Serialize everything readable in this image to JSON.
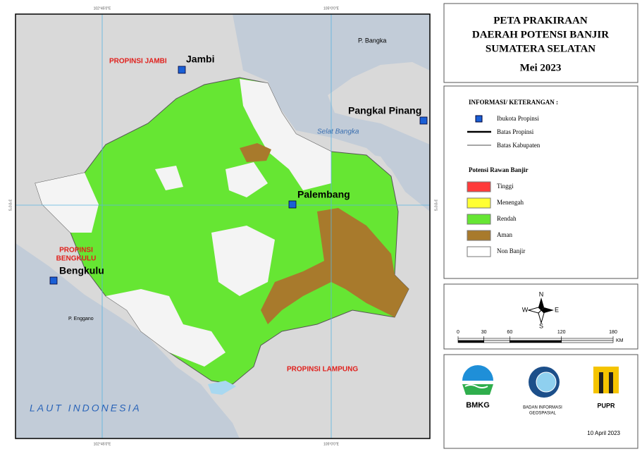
{
  "title": {
    "lines": [
      "PETA PRAKIRAAN",
      "DAERAH POTENSI BANJIR",
      "SUMATERA SELATAN"
    ],
    "period": "Mei 2023"
  },
  "map": {
    "labels": [
      "PROPINSI JAMBI",
      "Jambi",
      "P. Bangka",
      "Pangkal Pinang",
      "Selat Bangka",
      "Palembang",
      "PROPINSI",
      "BENGKULU",
      "Bengkulu",
      "P. Enggano",
      "PROPINSI LAMPUNG",
      "LAUT INDONESIA"
    ],
    "grid_labels": [
      "102°45'0\"E",
      "105°0'0\"E",
      "3°0'0\"S",
      "3°0'0\"S",
      "102°45'0\"E",
      "105°0'0\"E"
    ]
  },
  "legend": {
    "heading": "INFORMASI/ KETERANGAN :",
    "symbols": [
      "Ibukota Propinsi",
      "Batas Propinsi",
      "Batas Kabupaten"
    ],
    "category_heading": "Potensi Rawan Banjir",
    "categories": [
      {
        "label": "Tinggi",
        "color": "#ff3b3b"
      },
      {
        "label": "Menengah",
        "color": "#ffff33"
      },
      {
        "label": "Rendah",
        "color": "#66e633"
      },
      {
        "label": "Aman",
        "color": "#a87a2c"
      },
      {
        "label": "Non Banjir",
        "color": "#ffffff"
      }
    ]
  },
  "compass": [
    "N",
    "W",
    "E",
    "S"
  ],
  "scale": {
    "ticks": [
      0,
      30,
      60,
      120,
      180
    ],
    "unit": "KM"
  },
  "logos": [
    "BMKG",
    "BADAN INFORMASI",
    "GEOSPASIAL",
    "PUPR"
  ],
  "date": "10 April 2023"
}
